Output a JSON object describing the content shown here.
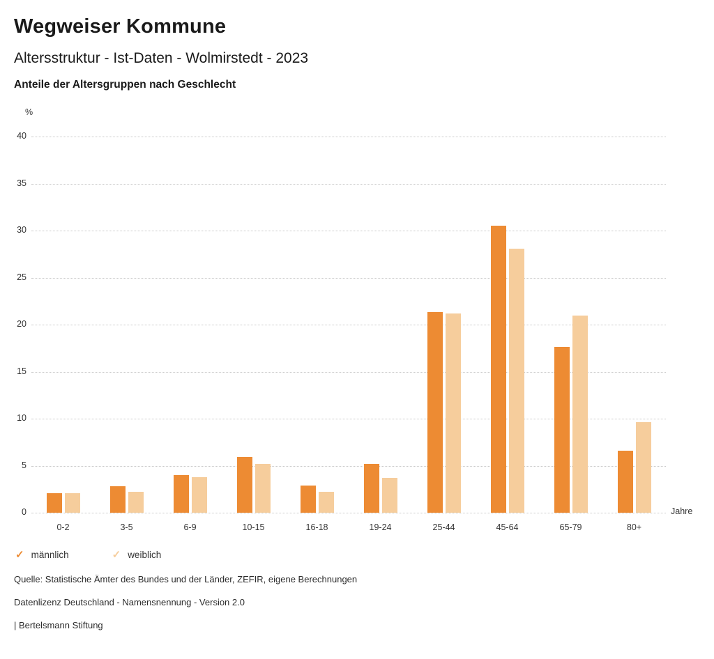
{
  "header": {
    "title": "Wegweiser Kommune",
    "subtitle": "Altersstruktur - Ist-Daten - Wolmirstedt - 2023",
    "heading": "Anteile der Altersgruppen nach Geschlecht"
  },
  "legend": {
    "check_glyph": "✓"
  },
  "footer": {
    "source_line": "Quelle: Statistische Ämter des Bundes und der Länder, ZEFIR, eigene Berechnungen",
    "license_line": "Datenlizenz Deutschland - Namensnennung - Version 2.0",
    "brand_line": "| Bertelsmann Stiftung"
  },
  "chart_data": {
    "type": "bar",
    "title": "Anteile der Altersgruppen nach Geschlecht",
    "categories": [
      "0-2",
      "3-5",
      "6-9",
      "10-15",
      "16-18",
      "19-24",
      "25-44",
      "45-64",
      "65-79",
      "80+"
    ],
    "series": [
      {
        "name": "männlich",
        "color": "#ED8B33",
        "values": [
          2.1,
          2.8,
          4.0,
          5.9,
          2.9,
          5.2,
          21.3,
          30.5,
          17.6,
          6.6
        ]
      },
      {
        "name": "weiblich",
        "color": "#F6CD9C",
        "values": [
          2.1,
          2.2,
          3.8,
          5.2,
          2.2,
          3.7,
          21.2,
          28.1,
          21.0,
          9.6
        ]
      }
    ],
    "xlabel": "Jahre",
    "ylabel": "%",
    "ylim": [
      0,
      40
    ],
    "ytick_step": 5,
    "grid": true,
    "grid_style": "dotted",
    "legend_position": "bottom-left"
  }
}
